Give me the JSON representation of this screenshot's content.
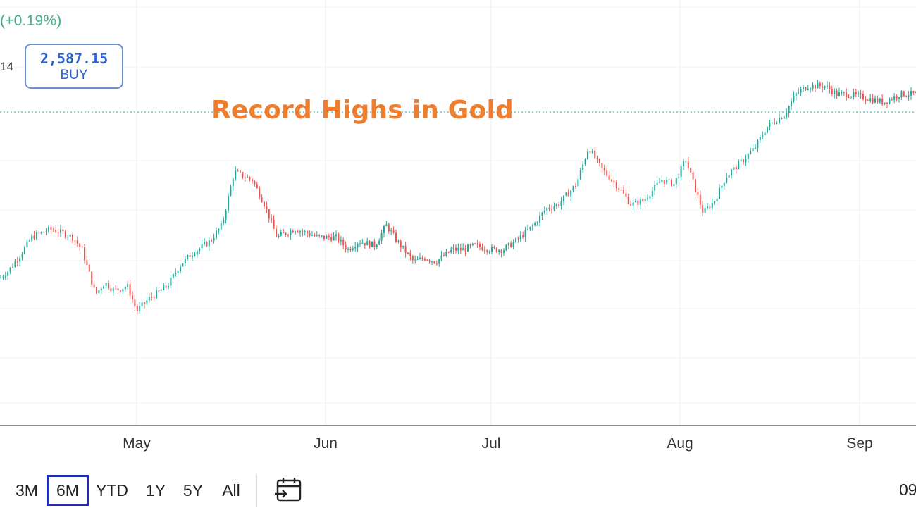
{
  "header": {
    "change_text": "(+0.19%)",
    "left_value": "14",
    "buy_price": "2,587.15",
    "buy_label": "BUY"
  },
  "annotation": "Record Highs in Gold",
  "toolbar": {
    "ranges": [
      "3M",
      "6M",
      "YTD",
      "1Y",
      "5Y",
      "All"
    ],
    "active_range": "6M",
    "time_fragment": "09"
  },
  "colors": {
    "up": "#26a69a",
    "down": "#ef5350",
    "annotation": "#ee7d2e",
    "buy": "#2c63d6",
    "active_range_border": "#1f2fb3",
    "change": "#3fae91"
  },
  "chart_data": {
    "type": "line",
    "title": "Record Highs in Gold",
    "xlabel": "",
    "ylabel": "",
    "x_tick_labels": [
      "May",
      "Jun",
      "Jul",
      "Aug",
      "Sep"
    ],
    "grid": true,
    "y_axis_labels_visible": false,
    "reference_line_value": 2587.15,
    "ylim": [
      2100,
      2620
    ],
    "series": [
      {
        "x": [
          "2024-04-01",
          "2024-04-03",
          "2024-04-05",
          "2024-04-08",
          "2024-04-10",
          "2024-04-12",
          "2024-04-15",
          "2024-04-17",
          "2024-04-19",
          "2024-04-22",
          "2024-04-24",
          "2024-04-26",
          "2024-04-29",
          "2024-05-01",
          "2024-05-03",
          "2024-05-06",
          "2024-05-08",
          "2024-05-10",
          "2024-05-13",
          "2024-05-15",
          "2024-05-17",
          "2024-05-20",
          "2024-05-22",
          "2024-05-24",
          "2024-05-27",
          "2024-05-29",
          "2024-05-31",
          "2024-06-03",
          "2024-06-05",
          "2024-06-07",
          "2024-06-10",
          "2024-06-12",
          "2024-06-14",
          "2024-06-17",
          "2024-06-19",
          "2024-06-21",
          "2024-06-24",
          "2024-06-26",
          "2024-06-28",
          "2024-07-01",
          "2024-07-03",
          "2024-07-05",
          "2024-07-08",
          "2024-07-10",
          "2024-07-12",
          "2024-07-15",
          "2024-07-17",
          "2024-07-19",
          "2024-07-22",
          "2024-07-24",
          "2024-07-26",
          "2024-07-29",
          "2024-07-31",
          "2024-08-02",
          "2024-08-05",
          "2024-08-07",
          "2024-08-09",
          "2024-08-12",
          "2024-08-14",
          "2024-08-16",
          "2024-08-19",
          "2024-08-21",
          "2024-08-23",
          "2024-08-26",
          "2024-08-28",
          "2024-08-30",
          "2024-09-02",
          "2024-09-04",
          "2024-09-06"
        ],
        "values": [
          2280,
          2290,
          2305,
          2330,
          2335,
          2340,
          2335,
          2330,
          2315,
          2260,
          2275,
          2265,
          2270,
          2240,
          2255,
          2270,
          2295,
          2310,
          2325,
          2345,
          2410,
          2400,
          2370,
          2330,
          2340,
          2335,
          2330,
          2330,
          2315,
          2325,
          2320,
          2345,
          2325,
          2300,
          2305,
          2300,
          2315,
          2315,
          2320,
          2315,
          2315,
          2325,
          2345,
          2365,
          2370,
          2395,
          2440,
          2415,
          2390,
          2370,
          2375,
          2400,
          2395,
          2425,
          2360,
          2375,
          2405,
          2425,
          2440,
          2465,
          2480,
          2505,
          2515,
          2515,
          2505,
          2505,
          2500,
          2495,
          2505
        ]
      }
    ]
  }
}
